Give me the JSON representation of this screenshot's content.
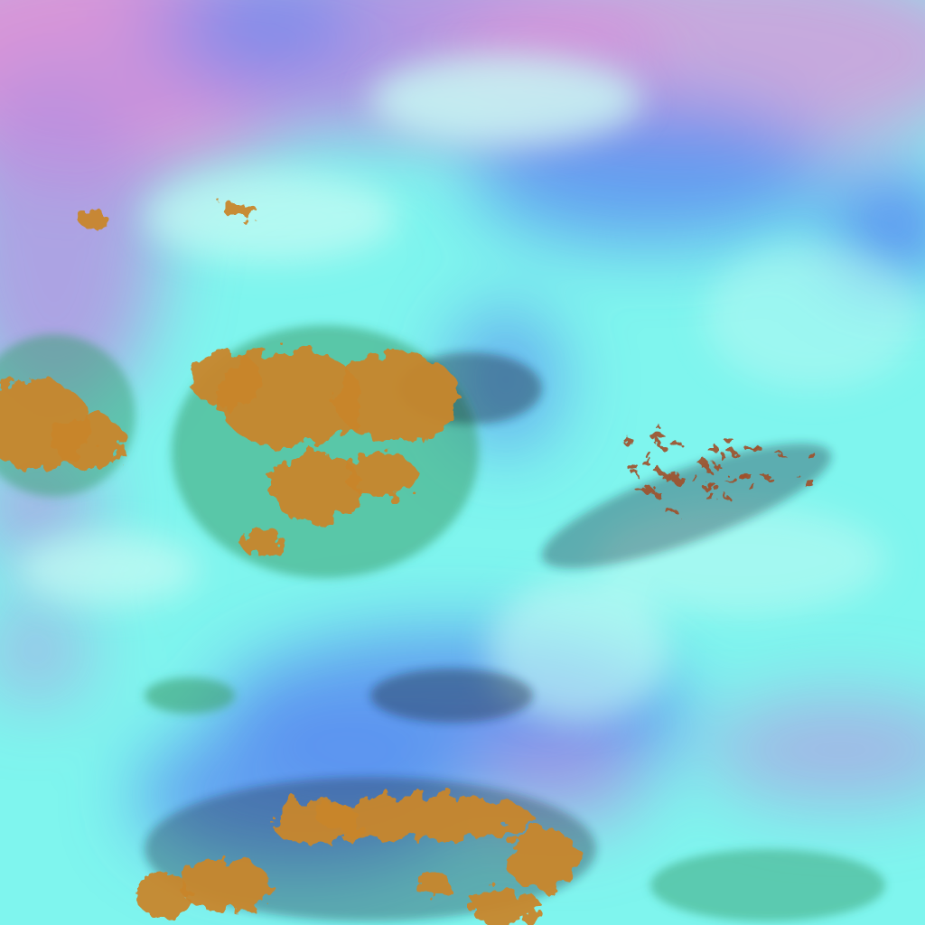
{
  "image": {
    "kind": "false-color satellite imagery",
    "colors": {
      "cyan_cloud": "#7ff5ee",
      "pale_cloud": "#c8fbf4",
      "blue_region": "#5a8cf0",
      "violet_haze": "#b88ee0",
      "pink_haze": "#d896d8",
      "orange_cloud": "#c8862c",
      "dark_texture": "#1a2a3a",
      "green_fringe": "#3aa070"
    }
  }
}
